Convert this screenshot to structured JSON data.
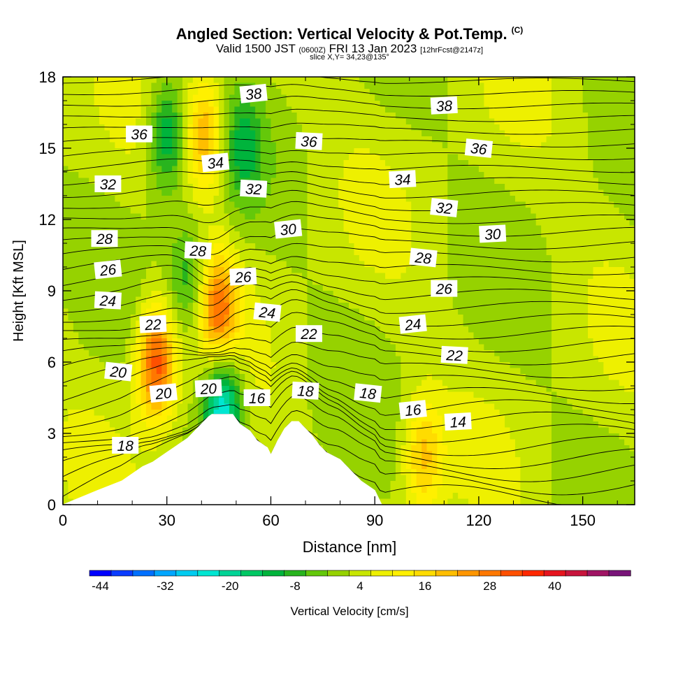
{
  "header": {
    "title": "Angled Section: Vertical Velocity & Pot.Temp.",
    "title_unit": "(C)",
    "subtitle_a": "Valid 1500 JST",
    "subtitle_b": "(0600Z)",
    "subtitle_c": "FRI 13 Jan 2023",
    "subtitle_d": "[12hrFcst@2147z]",
    "slice": "slice X,Y= 34,23@135°"
  },
  "chart_data": {
    "type": "heatmap",
    "title": "Angled Section: Vertical Velocity & Pot.Temp. (C)",
    "xlabel": "Distance [nm]",
    "ylabel": "Height [Kft MSL]",
    "xlim": [
      0,
      165
    ],
    "ylim": [
      0,
      18
    ],
    "x_ticks": [
      "0",
      "30",
      "60",
      "90",
      "120",
      "150"
    ],
    "y_ticks": [
      "0",
      "3",
      "6",
      "9",
      "12",
      "15",
      "18"
    ],
    "colorbar": {
      "label": "Vertical Velocity [cm/s]",
      "min": -46,
      "max": 50,
      "step": 4,
      "tick_labels": [
        "-44",
        "-32",
        "-20",
        "-8",
        "4",
        "16",
        "28",
        "40"
      ],
      "colors": [
        "#0000ff",
        "#0a3cff",
        "#0070ff",
        "#00a6ff",
        "#00ccf0",
        "#00e6d2",
        "#00d496",
        "#00c864",
        "#00b43c",
        "#28b41e",
        "#64c80a",
        "#96d200",
        "#c8e600",
        "#eef000",
        "#fff000",
        "#ffdc00",
        "#ffbe00",
        "#ff9600",
        "#ff7800",
        "#ff5000",
        "#ff2800",
        "#e6141e",
        "#c8143c",
        "#a01464",
        "#781478"
      ]
    },
    "velocity_features": [
      {
        "kind": "updraft",
        "distance_nm": 27,
        "height_kft": 6.0,
        "peak_cm_s": 30
      },
      {
        "kind": "updraft",
        "distance_nm": 41,
        "height_kft": 15.5,
        "peak_cm_s": 20
      },
      {
        "kind": "updraft",
        "distance_nm": 45,
        "height_kft": 8.2,
        "peak_cm_s": 24
      },
      {
        "kind": "updraft",
        "distance_nm": 104,
        "height_kft": 2.0,
        "peak_cm_s": 16
      },
      {
        "kind": "downdraft",
        "distance_nm": 46,
        "height_kft": 4.0,
        "peak_cm_s": -30
      },
      {
        "kind": "downdraft",
        "distance_nm": 30,
        "height_kft": 15.5,
        "peak_cm_s": -18
      },
      {
        "kind": "downdraft",
        "distance_nm": 36,
        "height_kft": 9.5,
        "peak_cm_s": -12
      },
      {
        "kind": "downdraft",
        "distance_nm": 52,
        "height_kft": 15,
        "peak_cm_s": -12
      }
    ],
    "terrain_profile": {
      "distance_nm": [
        0,
        10,
        17,
        20,
        23,
        26,
        30,
        33,
        36,
        38,
        40,
        42,
        43,
        44,
        49,
        51,
        54,
        56,
        59,
        60,
        62,
        64,
        66,
        68,
        70,
        72,
        74,
        76,
        80,
        82,
        84,
        86,
        88,
        90,
        92,
        165
      ],
      "height_kft": [
        0,
        0.6,
        1.0,
        1.3,
        1.6,
        1.8,
        2.2,
        2.5,
        2.8,
        3.1,
        3.4,
        3.7,
        3.8,
        3.8,
        3.8,
        3.4,
        3.1,
        2.7,
        2.4,
        2.1,
        2.7,
        3.2,
        3.5,
        3.5,
        3.2,
        2.9,
        2.5,
        2.2,
        1.9,
        1.6,
        1.3,
        1.0,
        0.8,
        0.6,
        0,
        0
      ]
    },
    "pot_temp_labels": [
      {
        "text": "38",
        "distance_nm": 55,
        "height_kft": 17.3
      },
      {
        "text": "38",
        "distance_nm": 110,
        "height_kft": 16.8
      },
      {
        "text": "36",
        "distance_nm": 22,
        "height_kft": 15.6
      },
      {
        "text": "36",
        "distance_nm": 71,
        "height_kft": 15.3
      },
      {
        "text": "36",
        "distance_nm": 120,
        "height_kft": 15.0
      },
      {
        "text": "34",
        "distance_nm": 44,
        "height_kft": 14.4
      },
      {
        "text": "34",
        "distance_nm": 98,
        "height_kft": 13.7
      },
      {
        "text": "32",
        "distance_nm": 13,
        "height_kft": 13.5
      },
      {
        "text": "32",
        "distance_nm": 55,
        "height_kft": 13.3
      },
      {
        "text": "32",
        "distance_nm": 110,
        "height_kft": 12.5
      },
      {
        "text": "30",
        "distance_nm": 65,
        "height_kft": 11.6
      },
      {
        "text": "30",
        "distance_nm": 124,
        "height_kft": 11.4
      },
      {
        "text": "28",
        "distance_nm": 12,
        "height_kft": 11.2
      },
      {
        "text": "28",
        "distance_nm": 39,
        "height_kft": 10.7
      },
      {
        "text": "28",
        "distance_nm": 104,
        "height_kft": 10.4
      },
      {
        "text": "26",
        "distance_nm": 13,
        "height_kft": 9.9
      },
      {
        "text": "26",
        "distance_nm": 52,
        "height_kft": 9.6
      },
      {
        "text": "26",
        "distance_nm": 110,
        "height_kft": 9.1
      },
      {
        "text": "24",
        "distance_nm": 13,
        "height_kft": 8.6
      },
      {
        "text": "24",
        "distance_nm": 59,
        "height_kft": 8.1
      },
      {
        "text": "24",
        "distance_nm": 101,
        "height_kft": 7.6
      },
      {
        "text": "22",
        "distance_nm": 26,
        "height_kft": 7.6
      },
      {
        "text": "22",
        "distance_nm": 71,
        "height_kft": 7.2
      },
      {
        "text": "22",
        "distance_nm": 113,
        "height_kft": 6.3
      },
      {
        "text": "20",
        "distance_nm": 16,
        "height_kft": 5.6
      },
      {
        "text": "20",
        "distance_nm": 29,
        "height_kft": 4.7
      },
      {
        "text": "20",
        "distance_nm": 42,
        "height_kft": 4.9
      },
      {
        "text": "16",
        "distance_nm": 56,
        "height_kft": 4.5
      },
      {
        "text": "18",
        "distance_nm": 70,
        "height_kft": 4.8
      },
      {
        "text": "18",
        "distance_nm": 88,
        "height_kft": 4.7
      },
      {
        "text": "16",
        "distance_nm": 101,
        "height_kft": 4.0
      },
      {
        "text": "14",
        "distance_nm": 114,
        "height_kft": 3.5
      },
      {
        "text": "18",
        "distance_nm": 18,
        "height_kft": 2.5
      }
    ]
  }
}
